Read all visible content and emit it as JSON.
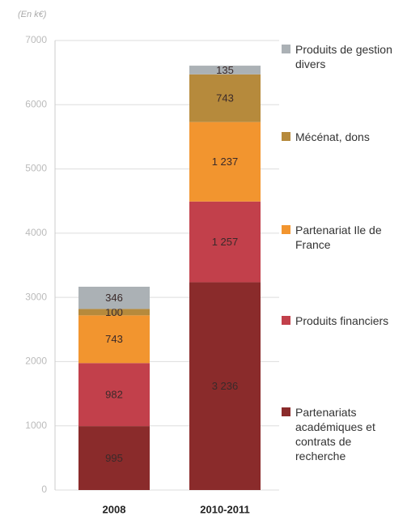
{
  "chart_data": {
    "type": "stacked_bar",
    "y_axis_label": "(En k€)",
    "categories": [
      "2008",
      "2010-2011"
    ],
    "series": [
      {
        "name": "Partenariats académiques et contrats de recherche",
        "color": "#8a2b2b",
        "values": [
          995,
          3236
        ],
        "value_labels": [
          "995",
          "3 236"
        ]
      },
      {
        "name": "Produits financiers",
        "color": "#c2404b",
        "values": [
          982,
          1257
        ],
        "value_labels": [
          "982",
          "1 257"
        ]
      },
      {
        "name": "Partenariat Ile de France",
        "color": "#f2952f",
        "values": [
          743,
          1237
        ],
        "value_labels": [
          "743",
          "1 237"
        ]
      },
      {
        "name": "Mécénat, dons",
        "color": "#b68a3c",
        "values": [
          100,
          743
        ],
        "value_labels": [
          "100",
          "743"
        ]
      },
      {
        "name": "Produits de gestion divers",
        "color": "#abb1b5",
        "values": [
          346,
          135
        ],
        "value_labels": [
          "346",
          "135"
        ]
      }
    ],
    "ylim": [
      0,
      7000
    ],
    "yticks": [
      0,
      1000,
      2000,
      3000,
      4000,
      5000,
      6000,
      7000
    ],
    "grid": true,
    "legend": "right"
  }
}
